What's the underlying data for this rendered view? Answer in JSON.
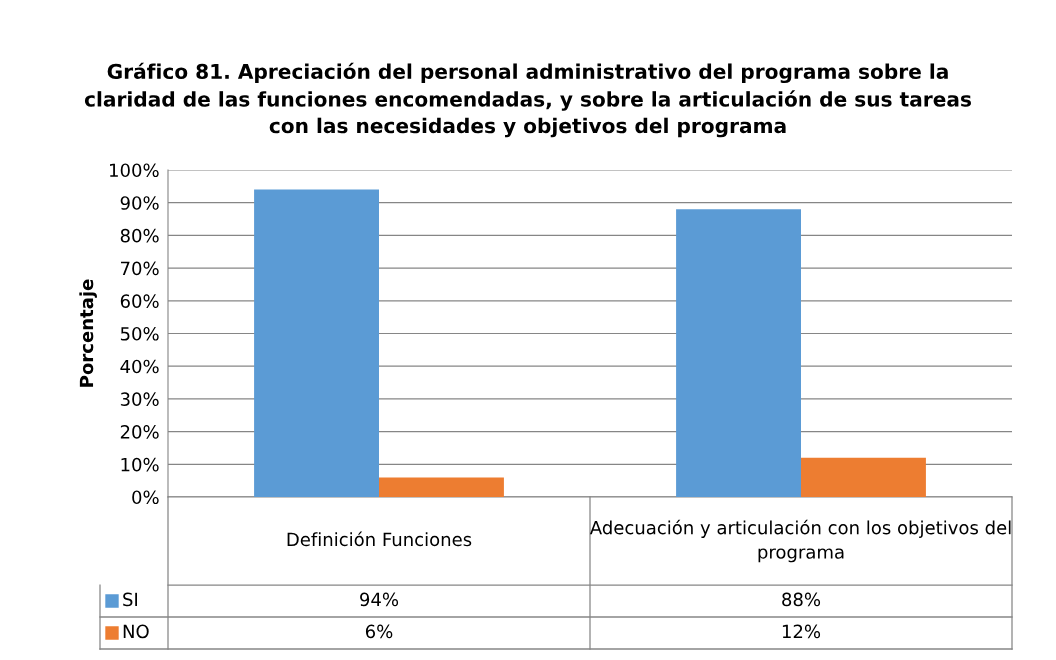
{
  "chart_data": {
    "type": "bar",
    "title": "Gráfico 81. Apreciación del personal administrativo del programa sobre la claridad de las funciones encomendadas, y sobre la articulación de sus tareas con las necesidades y objetivos del programa",
    "ylabel": "Porcentaje",
    "categories": [
      "Definición Funciones",
      "Adecuación y articulación con los objetivos del programa"
    ],
    "series": [
      {
        "name": "SI",
        "color": "#5b9bd5",
        "values": [
          94,
          88
        ],
        "value_labels": [
          "94%",
          "88%"
        ]
      },
      {
        "name": "NO",
        "color": "#ed7d31",
        "values": [
          6,
          12
        ],
        "value_labels": [
          "6%",
          "12%"
        ]
      }
    ],
    "ylim": [
      0,
      100
    ],
    "yticks": [
      {
        "value": 0,
        "label": "0%"
      },
      {
        "value": 10,
        "label": "10%"
      },
      {
        "value": 20,
        "label": "20%"
      },
      {
        "value": 30,
        "label": "30%"
      },
      {
        "value": 40,
        "label": "40%"
      },
      {
        "value": 50,
        "label": "50%"
      },
      {
        "value": 60,
        "label": "60%"
      },
      {
        "value": 70,
        "label": "70%"
      },
      {
        "value": 80,
        "label": "80%"
      },
      {
        "value": 90,
        "label": "90%"
      },
      {
        "value": 100,
        "label": "100%"
      }
    ],
    "grid": "y",
    "legend": "bottom"
  }
}
